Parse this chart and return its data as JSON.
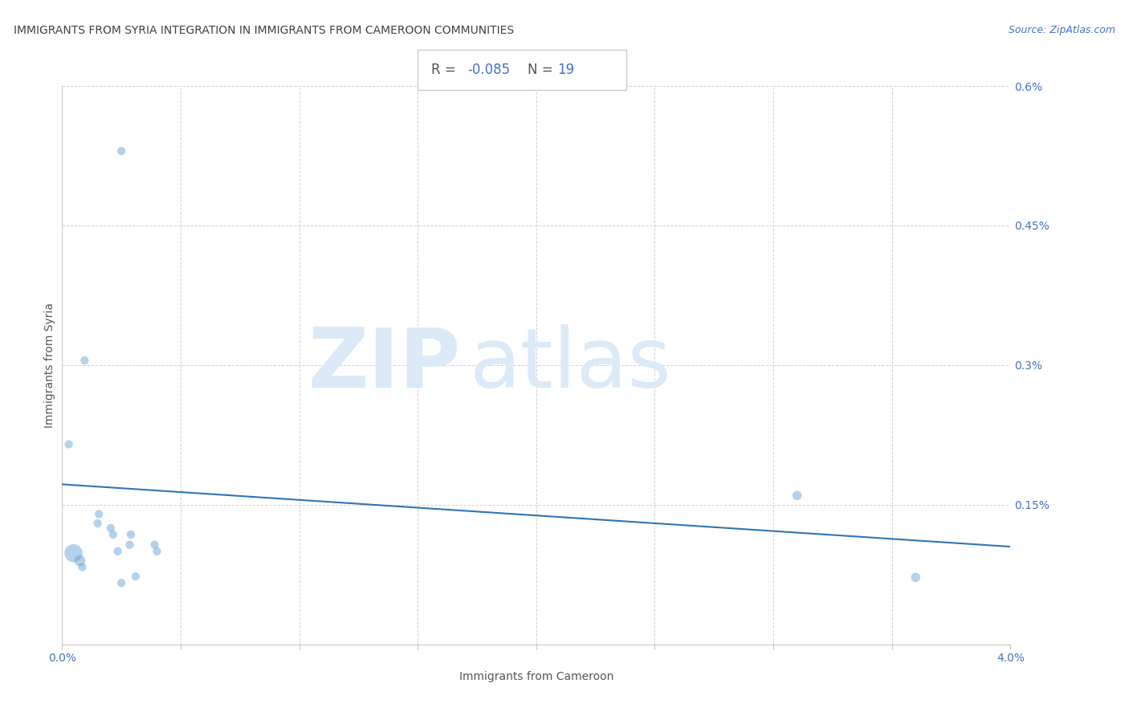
{
  "title": "IMMIGRANTS FROM SYRIA INTEGRATION IN IMMIGRANTS FROM CAMEROON COMMUNITIES",
  "source": "Source: ZipAtlas.com",
  "xlabel": "Immigrants from Cameroon",
  "ylabel": "Immigrants from Syria",
  "R": -0.085,
  "N": 19,
  "xlim": [
    0.0,
    0.04
  ],
  "ylim": [
    0.0,
    0.006
  ],
  "xtick_vals": [
    0.0,
    0.005,
    0.01,
    0.015,
    0.02,
    0.025,
    0.03,
    0.035,
    0.04
  ],
  "ytick_vals": [
    0.0,
    0.0015,
    0.003,
    0.0045,
    0.006
  ],
  "dot_color": "#5b9bd5",
  "dot_alpha": 0.45,
  "line_color": "#2e75b6",
  "line_alpha": 1.0,
  "line_y_start": 0.00172,
  "line_y_end": 0.00105,
  "grid_color": "#c8c8c8",
  "watermark_color": "#dce9f7",
  "tick_color": "#4472c4",
  "title_color": "#404040",
  "axis_label_color": "#555555",
  "source_color": "#4472c4",
  "stats_box_color": "#cccccc",
  "points": [
    [
      0.0025,
      0.0053,
      55
    ],
    [
      0.00095,
      0.00305,
      55
    ],
    [
      0.00028,
      0.00215,
      55
    ],
    [
      0.00048,
      0.00098,
      260
    ],
    [
      0.00075,
      0.0009,
      100
    ],
    [
      0.0015,
      0.0013,
      55
    ],
    [
      0.00155,
      0.0014,
      55
    ],
    [
      0.00085,
      0.00083,
      55
    ],
    [
      0.00215,
      0.00118,
      55
    ],
    [
      0.00205,
      0.00125,
      55
    ],
    [
      0.00235,
      0.001,
      55
    ],
    [
      0.00285,
      0.00107,
      55
    ],
    [
      0.0029,
      0.00118,
      55
    ],
    [
      0.0025,
      0.00066,
      55
    ],
    [
      0.0031,
      0.00073,
      55
    ],
    [
      0.0039,
      0.00107,
      55
    ],
    [
      0.004,
      0.001,
      55
    ],
    [
      0.031,
      0.0016,
      70
    ],
    [
      0.036,
      0.00072,
      70
    ]
  ]
}
